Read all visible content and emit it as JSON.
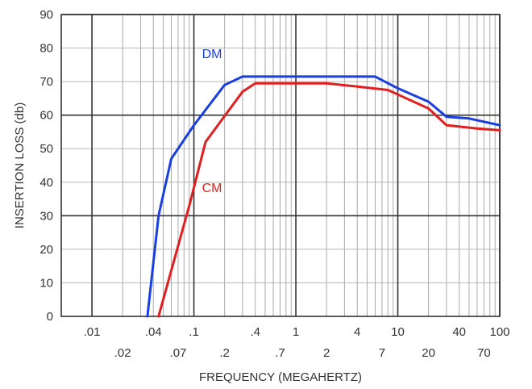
{
  "chart_data": {
    "type": "line",
    "title": "",
    "xlabel": "FREQUENCY (MEGAHERTZ)",
    "ylabel": "INSERTION LOSS (db)",
    "x_scale": "log",
    "xlim": [
      0.005,
      100
    ],
    "ylim": [
      0,
      90
    ],
    "y_ticks": [
      0,
      10,
      20,
      30,
      40,
      50,
      60,
      70,
      80,
      90
    ],
    "x_tick_labels": [
      {
        "value": 0.01,
        "label": ".01",
        "row": 0
      },
      {
        "value": 0.02,
        "label": ".02",
        "row": 1
      },
      {
        "value": 0.04,
        "label": ".04",
        "row": 0
      },
      {
        "value": 0.07,
        "label": ".07",
        "row": 1
      },
      {
        "value": 0.1,
        "label": ".1",
        "row": 0
      },
      {
        "value": 0.2,
        "label": ".2",
        "row": 1
      },
      {
        "value": 0.4,
        "label": ".4",
        "row": 0
      },
      {
        "value": 0.7,
        "label": ".7",
        "row": 1
      },
      {
        "value": 1,
        "label": "1",
        "row": 0
      },
      {
        "value": 2,
        "label": "2",
        "row": 1
      },
      {
        "value": 4,
        "label": "4",
        "row": 0
      },
      {
        "value": 7,
        "label": "7",
        "row": 1
      },
      {
        "value": 10,
        "label": "10",
        "row": 0
      },
      {
        "value": 20,
        "label": "20",
        "row": 1
      },
      {
        "value": 40,
        "label": "40",
        "row": 0
      },
      {
        "value": 70,
        "label": "70",
        "row": 1
      },
      {
        "value": 100,
        "label": "100",
        "row": 0
      }
    ],
    "x_major_gridlines": [
      0.01,
      0.1,
      1,
      10,
      100
    ],
    "x_minor_gridlines": [
      0.02,
      0.03,
      0.04,
      0.05,
      0.06,
      0.07,
      0.08,
      0.09,
      0.2,
      0.3,
      0.4,
      0.5,
      0.6,
      0.7,
      0.8,
      0.9,
      2,
      3,
      4,
      5,
      6,
      7,
      8,
      9,
      20,
      30,
      40,
      50,
      60,
      70,
      80,
      90
    ],
    "y_major_gridlines": [
      30,
      60,
      90
    ],
    "y_minor_gridlines": [
      10,
      20,
      40,
      50,
      70,
      80
    ],
    "grid": true,
    "series": [
      {
        "name": "DM",
        "color": "#1a3fe0",
        "label_at": {
          "x": 0.12,
          "y": 77
        },
        "points": [
          {
            "x": 0.035,
            "y": 0
          },
          {
            "x": 0.045,
            "y": 30
          },
          {
            "x": 0.06,
            "y": 47
          },
          {
            "x": 0.1,
            "y": 57
          },
          {
            "x": 0.2,
            "y": 69
          },
          {
            "x": 0.3,
            "y": 71.5
          },
          {
            "x": 6,
            "y": 71.5
          },
          {
            "x": 10,
            "y": 68
          },
          {
            "x": 20,
            "y": 64
          },
          {
            "x": 30,
            "y": 59.5
          },
          {
            "x": 50,
            "y": 59
          },
          {
            "x": 100,
            "y": 57
          }
        ]
      },
      {
        "name": "CM",
        "color": "#e02020",
        "label_at": {
          "x": 0.12,
          "y": 37
        },
        "points": [
          {
            "x": 0.045,
            "y": 0
          },
          {
            "x": 0.09,
            "y": 33
          },
          {
            "x": 0.13,
            "y": 52
          },
          {
            "x": 0.3,
            "y": 67
          },
          {
            "x": 0.4,
            "y": 69.5
          },
          {
            "x": 2,
            "y": 69.5
          },
          {
            "x": 4,
            "y": 68.5
          },
          {
            "x": 8,
            "y": 67.5
          },
          {
            "x": 20,
            "y": 62
          },
          {
            "x": 30,
            "y": 57
          },
          {
            "x": 60,
            "y": 56
          },
          {
            "x": 100,
            "y": 55.5
          }
        ]
      }
    ]
  }
}
